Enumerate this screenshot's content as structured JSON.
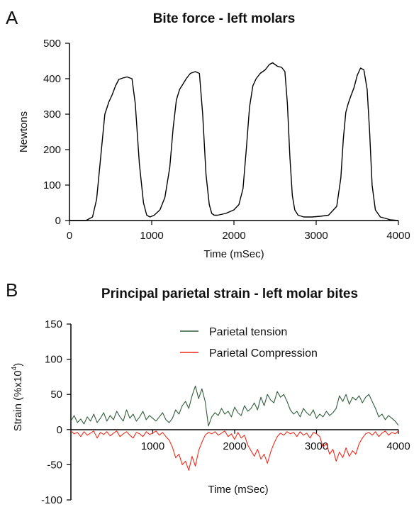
{
  "chart_data": [
    {
      "panel_label": "A",
      "type": "line",
      "title": "Bite force - left molars",
      "xlabel": "Time (mSec)",
      "ylabel": "Newtons",
      "xlim": [
        0,
        4000
      ],
      "ylim": [
        0,
        500
      ],
      "xticks": [
        "0",
        "1000",
        "2000",
        "3000",
        "4000"
      ],
      "yticks": [
        "0",
        "100",
        "200",
        "300",
        "400",
        "500"
      ],
      "grid": false,
      "series": [
        {
          "color": "#000000",
          "x": [
            0,
            200,
            280,
            330,
            380,
            430,
            480,
            520,
            560,
            600,
            650,
            700,
            760,
            800,
            850,
            900,
            940,
            980,
            1030,
            1100,
            1160,
            1220,
            1260,
            1300,
            1340,
            1380,
            1420,
            1470,
            1530,
            1580,
            1620,
            1660,
            1700,
            1730,
            1760,
            1800,
            1900,
            2000,
            2060,
            2110,
            2150,
            2190,
            2230,
            2270,
            2320,
            2380,
            2430,
            2470,
            2530,
            2580,
            2620,
            2650,
            2680,
            2710,
            2740,
            2780,
            2850,
            2950,
            3050,
            3150,
            3250,
            3300,
            3330,
            3360,
            3390,
            3420,
            3460,
            3500,
            3540,
            3580,
            3620,
            3650,
            3680,
            3720,
            3780,
            3860,
            3900,
            4000
          ],
          "y": [
            0,
            0,
            10,
            60,
            180,
            300,
            335,
            355,
            380,
            398,
            402,
            405,
            400,
            330,
            160,
            50,
            15,
            10,
            15,
            30,
            65,
            150,
            260,
            340,
            370,
            385,
            400,
            415,
            420,
            415,
            300,
            130,
            45,
            20,
            15,
            15,
            20,
            30,
            45,
            90,
            200,
            320,
            380,
            400,
            415,
            425,
            440,
            445,
            435,
            432,
            420,
            330,
            180,
            70,
            30,
            15,
            10,
            10,
            12,
            15,
            40,
            120,
            230,
            305,
            330,
            350,
            375,
            410,
            430,
            425,
            370,
            250,
            100,
            30,
            10,
            5,
            2,
            0
          ]
        }
      ]
    },
    {
      "panel_label": "B",
      "type": "line",
      "title": "Principal parietal strain - left molar bites",
      "xlabel": "Time (mSec)",
      "ylabel_main": "Strain (%x10",
      "ylabel_sup": "4",
      "ylabel_end": ")",
      "xlim": [
        0,
        4000
      ],
      "ylim": [
        -100,
        150
      ],
      "xticks": [
        "1000",
        "2000",
        "3000",
        "4000"
      ],
      "yticks": [
        "150",
        "100",
        "50",
        "0",
        "-50",
        "-100"
      ],
      "grid": false,
      "legend_position": "top-center",
      "series": [
        {
          "name": "Parietal tension",
          "color": "#2f5e3a",
          "x": [
            0,
            40,
            80,
            120,
            160,
            200,
            240,
            280,
            320,
            360,
            400,
            440,
            480,
            520,
            560,
            600,
            640,
            680,
            720,
            760,
            800,
            840,
            880,
            920,
            960,
            1000,
            1040,
            1080,
            1120,
            1160,
            1200,
            1240,
            1280,
            1320,
            1360,
            1400,
            1440,
            1480,
            1520,
            1560,
            1600,
            1640,
            1680,
            1720,
            1760,
            1800,
            1840,
            1880,
            1920,
            1960,
            2000,
            2040,
            2080,
            2120,
            2160,
            2200,
            2240,
            2280,
            2320,
            2360,
            2400,
            2440,
            2480,
            2520,
            2560,
            2600,
            2640,
            2680,
            2720,
            2760,
            2800,
            2840,
            2880,
            2920,
            2960,
            3000,
            3040,
            3080,
            3120,
            3160,
            3200,
            3240,
            3280,
            3320,
            3360,
            3400,
            3440,
            3480,
            3520,
            3560,
            3600,
            3640,
            3680,
            3720,
            3760,
            3800,
            3840,
            3880,
            3920,
            3960,
            4000
          ],
          "y": [
            12,
            20,
            10,
            15,
            8,
            18,
            12,
            22,
            10,
            16,
            24,
            12,
            20,
            14,
            26,
            18,
            12,
            28,
            16,
            22,
            12,
            18,
            26,
            14,
            20,
            16,
            12,
            18,
            24,
            14,
            10,
            16,
            28,
            22,
            34,
            40,
            30,
            48,
            62,
            44,
            58,
            40,
            5,
            18,
            24,
            20,
            30,
            22,
            26,
            18,
            32,
            24,
            20,
            34,
            26,
            30,
            38,
            28,
            46,
            34,
            50,
            42,
            38,
            54,
            46,
            50,
            40,
            28,
            22,
            26,
            18,
            30,
            24,
            20,
            28,
            16,
            22,
            18,
            26,
            20,
            24,
            30,
            48,
            40,
            50,
            36,
            46,
            42,
            48,
            38,
            46,
            50,
            40,
            30,
            18,
            22,
            14,
            20,
            16,
            12,
            6
          ]
        },
        {
          "name": "Parietal Compression",
          "color": "#f02a1a",
          "x": [
            0,
            40,
            80,
            120,
            160,
            200,
            240,
            280,
            320,
            360,
            400,
            440,
            480,
            520,
            560,
            600,
            640,
            680,
            720,
            760,
            800,
            840,
            880,
            920,
            960,
            1000,
            1040,
            1080,
            1120,
            1160,
            1200,
            1240,
            1280,
            1320,
            1360,
            1400,
            1440,
            1480,
            1520,
            1560,
            1600,
            1640,
            1680,
            1720,
            1760,
            1800,
            1840,
            1880,
            1920,
            1960,
            2000,
            2040,
            2080,
            2120,
            2160,
            2200,
            2240,
            2280,
            2320,
            2360,
            2400,
            2440,
            2480,
            2520,
            2560,
            2600,
            2640,
            2680,
            2720,
            2760,
            2800,
            2840,
            2880,
            2920,
            2960,
            3000,
            3040,
            3080,
            3120,
            3160,
            3200,
            3240,
            3280,
            3320,
            3360,
            3400,
            3440,
            3480,
            3520,
            3560,
            3600,
            3640,
            3680,
            3720,
            3760,
            3800,
            3840,
            3880,
            3920,
            3960,
            4000
          ],
          "y": [
            -2,
            -6,
            -4,
            -10,
            -3,
            -8,
            -5,
            -2,
            -12,
            -4,
            -7,
            -3,
            -9,
            -5,
            -2,
            -10,
            -6,
            -3,
            -8,
            -12,
            -4,
            -6,
            -10,
            -3,
            -7,
            -5,
            -2,
            -8,
            -4,
            -10,
            -15,
            -25,
            -40,
            -35,
            -50,
            -45,
            -58,
            -38,
            -52,
            -30,
            -18,
            -8,
            -4,
            -6,
            -3,
            -8,
            -5,
            -2,
            -10,
            -6,
            -14,
            -4,
            -12,
            -8,
            -22,
            -30,
            -38,
            -28,
            -42,
            -35,
            -48,
            -32,
            -20,
            -10,
            -5,
            -8,
            -3,
            -6,
            -4,
            -10,
            -3,
            -8,
            -5,
            -12,
            -4,
            -6,
            -10,
            -25,
            -20,
            -35,
            -28,
            -45,
            -32,
            -40,
            -26,
            -38,
            -30,
            -35,
            -20,
            -12,
            -6,
            -4,
            -8,
            -3,
            -10,
            -5,
            -2,
            -8,
            -4,
            -6,
            -2
          ]
        }
      ]
    }
  ]
}
